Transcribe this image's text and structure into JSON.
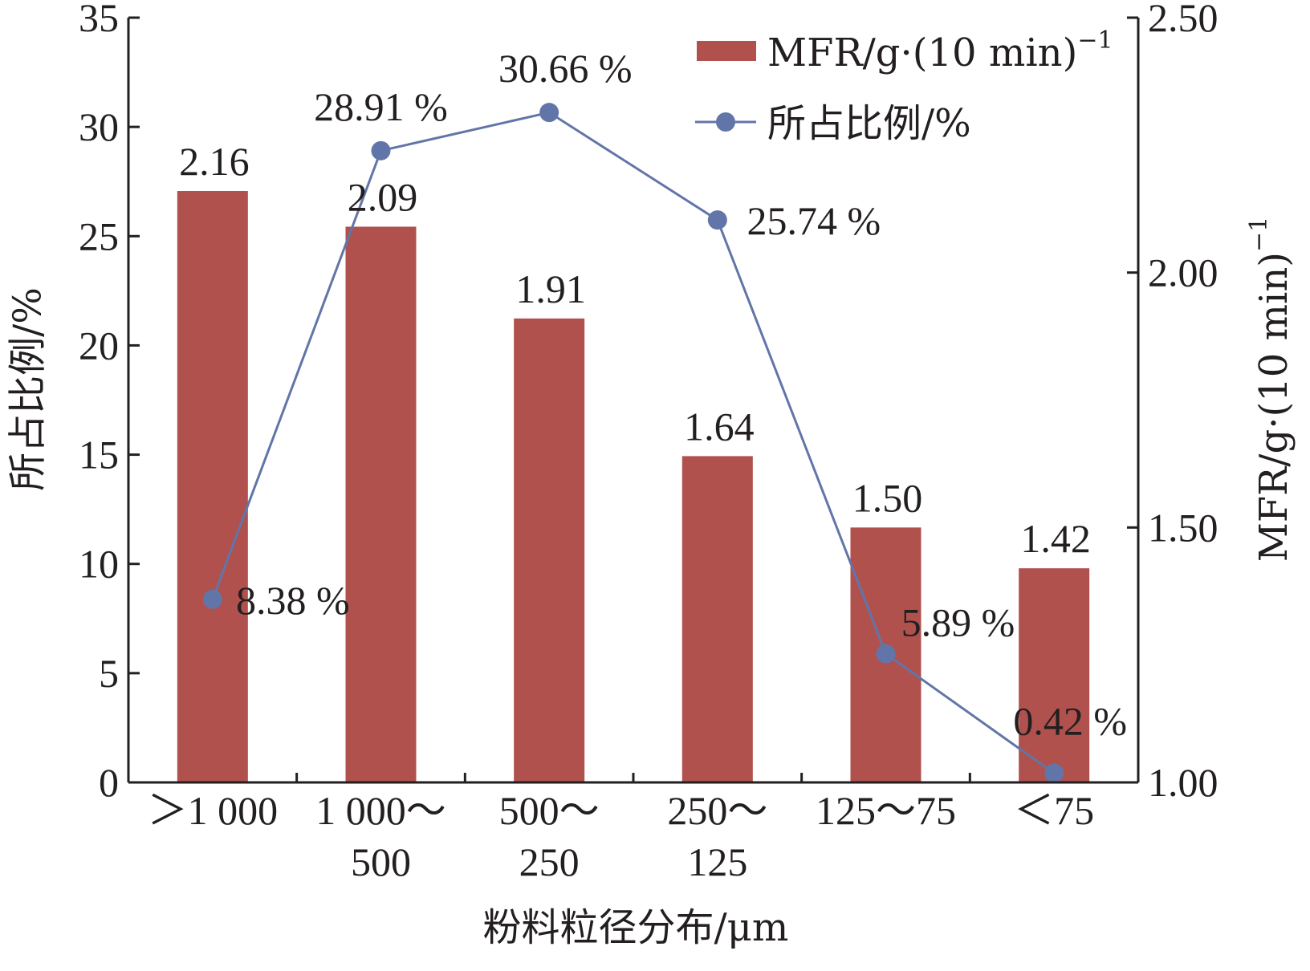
{
  "chart_data": {
    "type": "bar",
    "title": "",
    "xlabel": "粉料粒径分布/μm",
    "ylabel_left": "所占比例/%",
    "ylabel_right": "MFR/g·(10 min)",
    "ylabel_right_sup": "−1",
    "categories": [
      [
        "＞1 000"
      ],
      [
        "1 000～",
        "500"
      ],
      [
        "500～",
        "250"
      ],
      [
        "250～",
        "125"
      ],
      [
        "125～75"
      ],
      [
        "＜75"
      ]
    ],
    "ylim_left": [
      0,
      35
    ],
    "yticks_left": [
      "0",
      "5",
      "10",
      "15",
      "20",
      "25",
      "30",
      "35"
    ],
    "ylim_right": [
      1.0,
      2.5
    ],
    "yticks_right": [
      "1.00",
      "1.50",
      "2.00",
      "2.50"
    ],
    "series": [
      {
        "name": "MFR/g·(10 min)",
        "name_sup": "−1",
        "type": "bar",
        "axis": "right",
        "color": "#b0514e",
        "values": [
          2.16,
          2.09,
          1.91,
          1.64,
          1.5,
          1.42
        ],
        "labels": [
          "2.16",
          "2.09",
          "1.91",
          "1.64",
          "1.50",
          "1.42"
        ]
      },
      {
        "name": "所占比例/%",
        "type": "line",
        "axis": "left",
        "color": "#6275a8",
        "values": [
          8.38,
          28.91,
          30.66,
          25.74,
          5.89,
          0.42
        ],
        "labels": [
          "8.38 %",
          "28.91 %",
          "30.66 %",
          "25.74 %",
          "5.89 %",
          "0.42 %"
        ]
      }
    ],
    "legend": "top-right",
    "grid": false,
    "axis_color": "#231f20"
  }
}
